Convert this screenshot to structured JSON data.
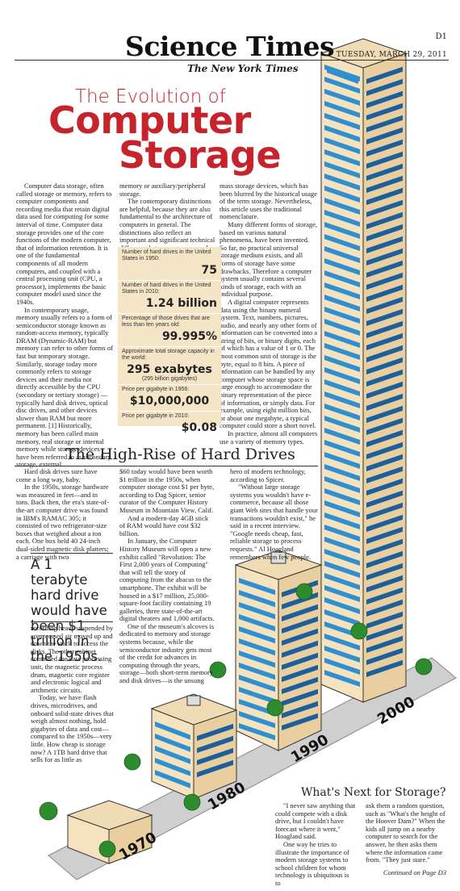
{
  "masthead": {
    "title": "Science Times",
    "page": "D1",
    "date": "TUESDAY, MARCH 29, 2011",
    "paper": "The New York Times"
  },
  "headline": {
    "line1": "The Evolution of",
    "line2": "Computer",
    "line3": "Storage"
  },
  "intro_columns": [
    [
      "Computer data storage, often called storage or memory, refers to computer components and recording media that retain digital data used for computing for some interval of time. Computer data storage provides one of the core functions of the modern computer, that of information retention. It is one of the fundamental components of all modern computers, and coupled with a central processing unit (CPU, a processor), implements the basic computer model used since the 1940s.",
      "In contemporary usage, memory usually refers to a form of semiconductor storage known as random-access memory, typically DRAM (Dynamic-RAM) but memory can refer to other forms of fast but temporary storage. Similarly, storage today more commonly refers to storage devices and their media not directly accessible by the CPU (secondary or tertiary storage) — typically hard disk drives, optical disc drives, and other devices slower than RAM but more permanent. [1] Historically, memory has been called main memory, real storage or internal memory while storage devices have been referred to as secondary storage, external"
    ],
    [
      "memory or auxiliary/peripheral storage.",
      "The contemporary distinctions are helpful, because they are also fundamental to the architecture of computers in general. The distinctions also reflect an important and significant technical difference between memory and"
    ],
    [
      "mass storage devices, which has been blurred by the historical usage of the term storage. Nevertheless, this article uses the traditional nomenclature.",
      "Many different forms of storage, based on various natural phenomena, have been invented. So far, no practical universal storage medium exists, and all forms of storage have some drawbacks. Therefore a computer system usually contains several kinds of storage, each with an individual purpose.",
      "A digital computer represents data using the binary numeral system. Text, numbers, pictures, audio, and nearly any other form of information can be converted into a string of bits, or binary digits, each of which has a value of 1 or 0. The most common unit of storage is the byte, equal to 8 bits. A piece of information can be handled by any computer whose storage space is large enough to accommodate the binary representation of the piece of information, or simply data. For example, using eight million bits, or about one megabyte, a typical computer could store a short novel.",
      "In practice, almost all computers use a variety of memory types."
    ]
  ],
  "stats": [
    {
      "label": "Number of hard drives in the United States in 1950:",
      "value": "75"
    },
    {
      "label": "Number of hard drives in the United States in 2010:",
      "value": "1.24 billion"
    },
    {
      "label": "Percentage of those drives that are less than ten years old:",
      "value": "99.995%"
    },
    {
      "label": "Approximate total storage capacity in the world:",
      "value": "295 exabytes",
      "sub": "(295 billion gigabytes)"
    },
    {
      "label": "Price per gigabyte in 1956:",
      "value": "$10,000,000"
    },
    {
      "label": "Price per gigabyte in 2010:",
      "value": "$0.08"
    }
  ],
  "section2": {
    "title": "The High-Rise of Hard Drives",
    "col1": [
      "Hard disk drives sure have come a long way, baby.",
      "In the 1950s, storage hardware was measured in feet—and in tons. Back then, the era's state-of-the-art computer drive was found in IBM's RAMAC 305; it consisted of two refrigerator-size boxes that weighed about a ton each. One box held 40 24-inch dual-sided magnetic disk platters; a carriage with two"
    ],
    "pullquote": "A 1 terabyte hard drive would have been $1 trillion in the 1950s.",
    "col1b": [
      "recording heads suspended by compressed air moved up and down the stack to access the disks. The other cabinet contained the data processing unit, the magnetic process drum, magnetic core register and electronic logical and arithmetic circuits.",
      "Today, we have flash drives, microdrives, and onboard solid-state drives that weigh almost nothing, hold gigabytes of data and cost—compared to the 1950s—very little. How cheap is storage now? A 1TB hard drive that sells for as little as"
    ],
    "col2": [
      "$60 today would have been worth $1 trillion in the 1950s, when computer storage cost $1 per byte, according to Dag Spicer, senior curator of the Computer History Museum in Mountain View, Calif.",
      "And a modern-day 4GB stick of RAM would have cost $32 billion.",
      "In January, the Computer History Museum will open a new exhibit called \"Revolution: The First 2,000 years of Computing\" that will tell the story of computing from the abacus to the smartphone. The exhibit will be housed in a $17 million, 25,000-square-foot facility containing 19 galleries, three state-of-the-art digital theaters and 1,000 artifacts.",
      "One of the museum's alcoves is dedicated to memory and storage systems because, while the semiconductor industry gets most of the credit for advances in computing through the years, storage—both short-term memory and disk drives—is the unsung"
    ],
    "col3": [
      "hero of modern technology, according to Spicer.",
      "\"Without large storage systems you wouldn't have e-commerce, because all those giant Web sites that handle your transactions wouldn't exist,\" he said in a recent interview. \"Google needs cheap, fast, reliable storage to process requests.\" Al Hoagland remembers when few people."
    ]
  },
  "section3": {
    "title": "What's Next for Storage?",
    "col1": [
      "\"I never saw anything that could compete with a disk drive, but I couldn't have forecast where it went,\" Hoagland said.",
      "One way he tries to illustrate the importance of modern storage systems to school children for whom technology is ubiquitous is to"
    ],
    "col2": [
      "ask them a random question, such as \"What's the height of the Hoover Dam?\" When the kids all jump on a nearby computer to search for the answer, he then asks them where the information came from. \"They just stare.\""
    ],
    "continued": "Continued on Page D3"
  },
  "illustration": {
    "years": [
      "1970",
      "1980",
      "1990",
      "2000"
    ],
    "colors": {
      "wall_light": "#f5e3bf",
      "wall_shade": "#e9cfa0",
      "window": "#2f8fcf",
      "window_dark": "#1d5f9a",
      "road": "#bfbfbf",
      "tree": "#2e8b2e",
      "accent": "#c5242c"
    }
  }
}
